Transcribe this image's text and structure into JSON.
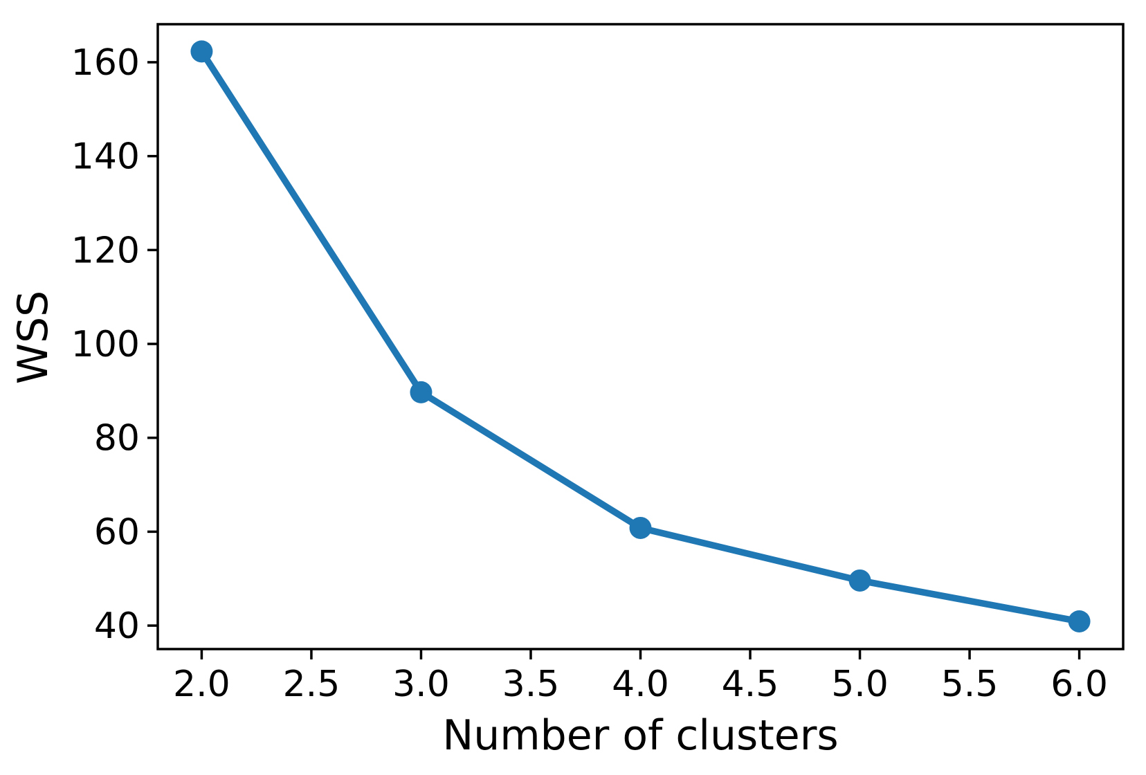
{
  "figure": {
    "background": "#ffffff",
    "text_color": "#000000"
  },
  "chart_data": {
    "type": "line",
    "title": "",
    "xlabel": "Number of clusters",
    "ylabel": "WSS",
    "x": [
      2,
      3,
      4,
      5,
      6
    ],
    "series": [
      {
        "name": "WSS",
        "values": [
          162.3,
          89.7,
          60.8,
          49.6,
          40.9
        ]
      }
    ],
    "x_tick_values": [
      2.0,
      2.5,
      3.0,
      3.5,
      4.0,
      4.5,
      5.0,
      5.5,
      6.0
    ],
    "x_tick_labels": [
      "2.0",
      "2.5",
      "3.0",
      "3.5",
      "4.0",
      "4.5",
      "5.0",
      "5.5",
      "6.0"
    ],
    "y_tick_values": [
      40,
      60,
      80,
      100,
      120,
      140,
      160
    ],
    "y_tick_labels": [
      "40",
      "60",
      "80",
      "100",
      "120",
      "140",
      "160"
    ],
    "xlim": [
      1.8,
      6.2
    ],
    "ylim": [
      35.0,
      168.1
    ],
    "grid": false,
    "legend_position": "none",
    "line_color": "#1f77b4",
    "marker": "circle",
    "marker_color": "#1f77b4",
    "axis_color": "#000000",
    "background": "#ffffff"
  }
}
